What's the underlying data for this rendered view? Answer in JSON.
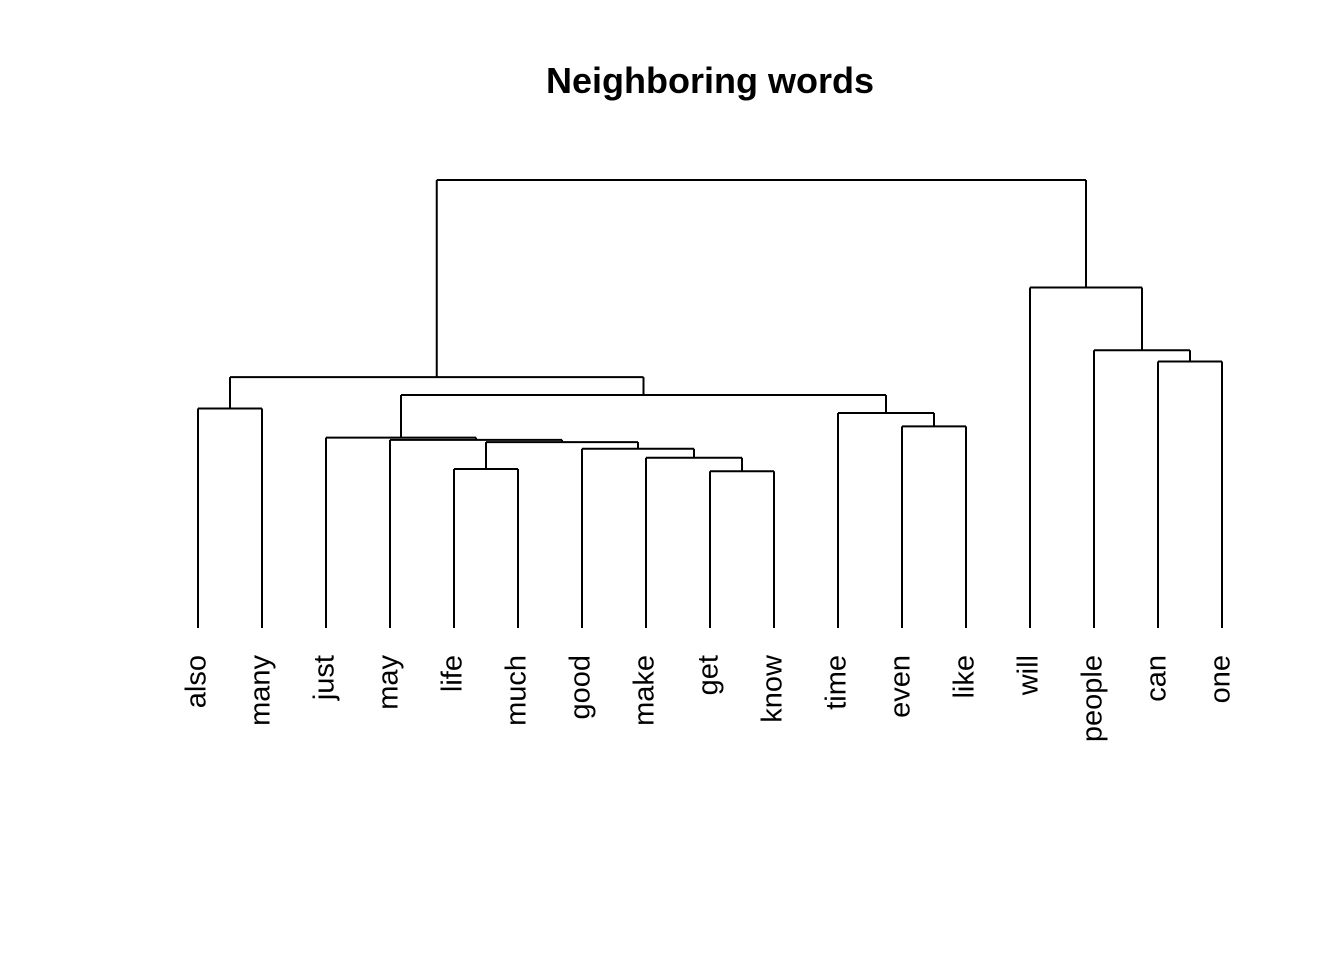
{
  "chart_data": {
    "type": "dendrogram",
    "title": "Neighboring words",
    "xlabel": "",
    "ylabel": "",
    "axes_shown": false,
    "grid": false,
    "legend": "none",
    "leaves": [
      "also",
      "many",
      "just",
      "may",
      "life",
      "much",
      "good",
      "make",
      "get",
      "know",
      "time",
      "even",
      "like",
      "will",
      "people",
      "can",
      "one"
    ],
    "merges": [
      {
        "left": "L:life",
        "right": "L:much",
        "height": 0.355
      },
      {
        "left": "L:get",
        "right": "L:know",
        "height": 0.35
      },
      {
        "left": "L:make",
        "right": "C:1",
        "height": 0.38
      },
      {
        "left": "L:good",
        "right": "C:2",
        "height": 0.4
      },
      {
        "left": "C:0",
        "right": "C:3",
        "height": 0.415
      },
      {
        "left": "L:may",
        "right": "C:4",
        "height": 0.42
      },
      {
        "left": "L:just",
        "right": "C:5",
        "height": 0.425
      },
      {
        "left": "L:even",
        "right": "L:like",
        "height": 0.45
      },
      {
        "left": "L:time",
        "right": "C:7",
        "height": 0.48
      },
      {
        "left": "C:6",
        "right": "C:8",
        "height": 0.52
      },
      {
        "left": "L:also",
        "right": "L:many",
        "height": 0.49
      },
      {
        "left": "C:10",
        "right": "C:9",
        "height": 0.56
      },
      {
        "left": "L:can",
        "right": "L:one",
        "height": 0.595
      },
      {
        "left": "L:people",
        "right": "C:12",
        "height": 0.62
      },
      {
        "left": "L:will",
        "right": "C:13",
        "height": 0.76
      },
      {
        "left": "C:11",
        "right": "C:14",
        "height": 1.0
      }
    ]
  }
}
